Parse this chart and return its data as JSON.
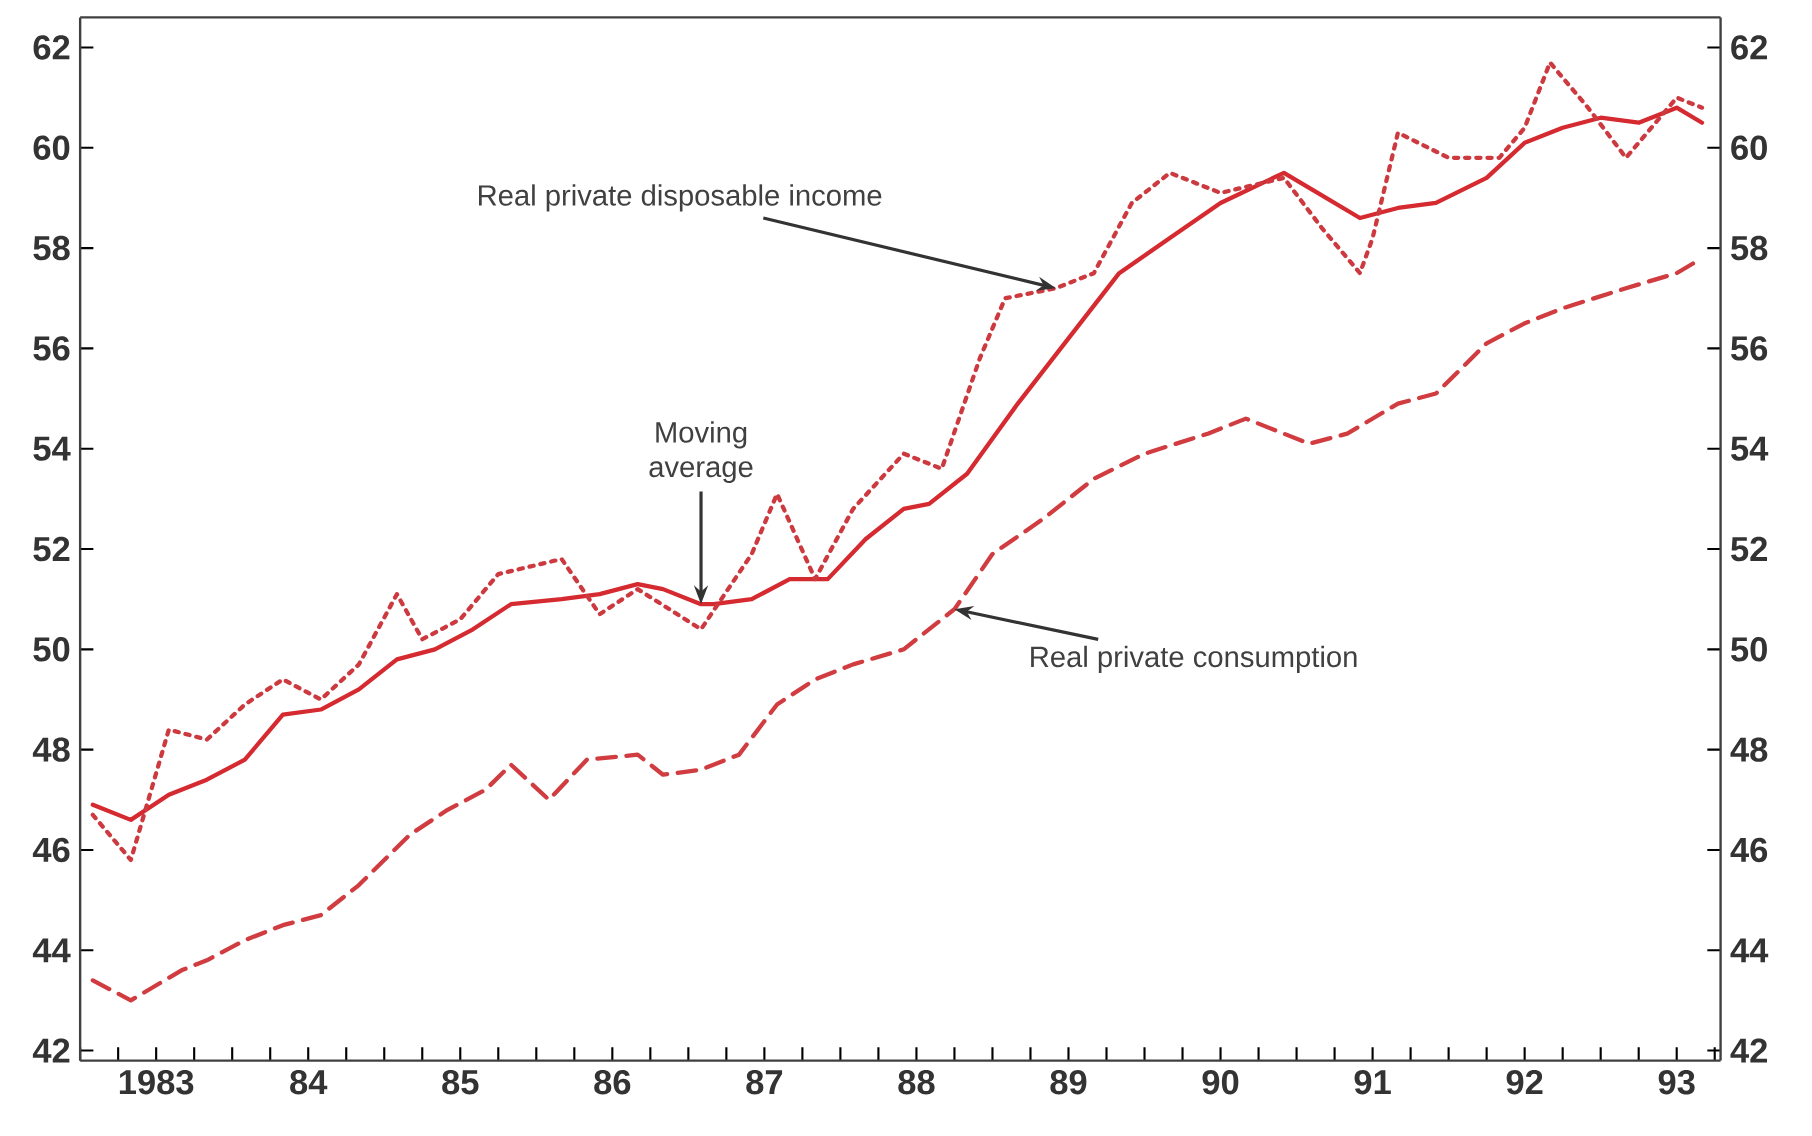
{
  "chart_data": {
    "type": "line",
    "xlim": [
      "1983-01-01",
      "1993-10-15"
    ],
    "ylim": [
      41.8,
      62.6
    ],
    "y2lim": [
      41.8,
      62.6
    ],
    "xticks": [
      {
        "value": "1983-01-01",
        "label": null
      },
      {
        "value": "1983-04-01",
        "label": null
      },
      {
        "value": "1983-07-01",
        "label": "1983"
      },
      {
        "value": "1983-10-01",
        "label": null
      },
      {
        "value": "1984-01-01",
        "label": null
      },
      {
        "value": "1984-04-01",
        "label": null
      },
      {
        "value": "1984-07-01",
        "label": "84"
      },
      {
        "value": "1984-10-01",
        "label": null
      },
      {
        "value": "1985-01-01",
        "label": null
      },
      {
        "value": "1985-04-01",
        "label": null
      },
      {
        "value": "1985-07-01",
        "label": "85"
      },
      {
        "value": "1985-10-01",
        "label": null
      },
      {
        "value": "1986-01-01",
        "label": null
      },
      {
        "value": "1986-04-01",
        "label": null
      },
      {
        "value": "1986-07-01",
        "label": "86"
      },
      {
        "value": "1986-10-01",
        "label": null
      },
      {
        "value": "1987-01-01",
        "label": null
      },
      {
        "value": "1987-04-01",
        "label": null
      },
      {
        "value": "1987-07-01",
        "label": "87"
      },
      {
        "value": "1987-10-01",
        "label": null
      },
      {
        "value": "1988-01-01",
        "label": null
      },
      {
        "value": "1988-04-01",
        "label": null
      },
      {
        "value": "1988-07-01",
        "label": "88"
      },
      {
        "value": "1988-10-01",
        "label": null
      },
      {
        "value": "1989-01-01",
        "label": null
      },
      {
        "value": "1989-04-01",
        "label": null
      },
      {
        "value": "1989-07-01",
        "label": "89"
      },
      {
        "value": "1989-10-01",
        "label": null
      },
      {
        "value": "1990-01-01",
        "label": null
      },
      {
        "value": "1990-04-01",
        "label": null
      },
      {
        "value": "1990-07-01",
        "label": "90"
      },
      {
        "value": "1990-10-01",
        "label": null
      },
      {
        "value": "1991-01-01",
        "label": null
      },
      {
        "value": "1991-04-01",
        "label": null
      },
      {
        "value": "1991-07-01",
        "label": "91"
      },
      {
        "value": "1991-10-01",
        "label": null
      },
      {
        "value": "1992-01-01",
        "label": null
      },
      {
        "value": "1992-04-01",
        "label": null
      },
      {
        "value": "1992-07-01",
        "label": "92"
      },
      {
        "value": "1992-10-01",
        "label": null
      },
      {
        "value": "1993-01-01",
        "label": null
      },
      {
        "value": "1993-04-01",
        "label": null
      },
      {
        "value": "1993-07-01",
        "label": "93"
      },
      {
        "value": "1993-10-01",
        "label": null
      }
    ],
    "yticks": [
      42,
      44,
      46,
      48,
      50,
      52,
      54,
      56,
      58,
      60,
      62
    ],
    "y2ticks": [
      42,
      44,
      46,
      48,
      50,
      52,
      54,
      56,
      58,
      60,
      62
    ],
    "grid": false,
    "series": [
      {
        "color": "#d42a30",
        "line_style": "solid",
        "x": [
          "1983-02",
          "1983-05",
          "1983-08",
          "1983-11",
          "1984-02",
          "1984-05",
          "1984-08",
          "1984-11",
          "1985-02",
          "1985-05",
          "1985-08",
          "1985-11",
          "1986-03",
          "1986-06",
          "1986-09",
          "1986-11",
          "1987-02",
          "1987-03",
          "1987-06",
          "1987-09",
          "1987-12",
          "1988-03",
          "1988-06",
          "1988-08",
          "1988-11",
          "1989-03",
          "1989-07",
          "1989-11",
          "1990-03",
          "1990-07",
          "1990-12",
          "1991-02",
          "1991-06",
          "1991-09",
          "1991-12",
          "1992-04",
          "1992-07",
          "1992-10",
          "1993-01",
          "1993-04",
          "1993-07",
          "1993-09"
        ],
        "values": [
          46.9,
          46.6,
          47.1,
          47.4,
          47.8,
          48.7,
          48.8,
          49.2,
          49.8,
          50.0,
          50.4,
          50.9,
          51.0,
          51.1,
          51.3,
          51.2,
          50.9,
          50.9,
          51.0,
          51.4,
          51.4,
          52.2,
          52.8,
          52.9,
          53.5,
          54.9,
          56.2,
          57.5,
          58.2,
          58.9,
          59.5,
          59.2,
          58.6,
          58.8,
          58.9,
          59.4,
          60.1,
          60.4,
          60.6,
          60.5,
          60.8,
          60.5
        ]
      },
      {
        "color": "#cc3a40",
        "line_style": "dotted",
        "x": [
          "1983-02",
          "1983-05",
          "1983-08",
          "1983-11",
          "1984-02",
          "1984-05",
          "1984-08",
          "1984-11",
          "1985-02",
          "1985-04",
          "1985-07",
          "1985-10",
          "1986-03",
          "1986-06",
          "1986-09",
          "1987-02",
          "1987-06",
          "1987-08",
          "1987-11",
          "1988-02",
          "1988-06",
          "1988-09",
          "1988-12",
          "1989-02",
          "1989-06",
          "1989-09",
          "1989-12",
          "1990-03",
          "1990-07",
          "1990-12",
          "1991-03",
          "1991-06",
          "1991-07",
          "1991-09",
          "1992-01",
          "1992-05",
          "1992-07",
          "1992-09",
          "1992-12",
          "1993-03",
          "1993-07",
          "1993-09"
        ],
        "values": [
          46.7,
          45.8,
          48.4,
          48.2,
          48.9,
          49.4,
          49.0,
          49.7,
          51.1,
          50.2,
          50.6,
          51.5,
          51.8,
          50.7,
          51.2,
          50.4,
          51.9,
          53.1,
          51.4,
          52.8,
          53.9,
          53.6,
          55.8,
          57.0,
          57.2,
          57.5,
          58.9,
          59.5,
          59.1,
          59.4,
          58.4,
          57.5,
          58.2,
          60.3,
          59.8,
          59.8,
          60.4,
          61.7,
          60.8,
          59.8,
          61.0,
          60.8
        ]
      },
      {
        "color": "#d03c40",
        "line_style": "dashed",
        "x": [
          "1983-02",
          "1983-05",
          "1983-09",
          "1983-11",
          "1984-02",
          "1984-05",
          "1984-08",
          "1984-11",
          "1985-03",
          "1985-06",
          "1985-09",
          "1985-11",
          "1986-02",
          "1986-05",
          "1986-09",
          "1986-11",
          "1987-02",
          "1987-05",
          "1987-08",
          "1987-11",
          "1988-02",
          "1988-06",
          "1988-10",
          "1989-01",
          "1989-05",
          "1989-09",
          "1990-01",
          "1990-06",
          "1990-09",
          "1991-02",
          "1991-05",
          "1991-09",
          "1991-12",
          "1992-04",
          "1992-07",
          "1992-10",
          "1993-03",
          "1993-07",
          "1993-09"
        ],
        "values": [
          43.4,
          43.0,
          43.6,
          43.8,
          44.2,
          44.5,
          44.7,
          45.3,
          46.3,
          46.8,
          47.2,
          47.7,
          47.0,
          47.8,
          47.9,
          47.5,
          47.6,
          47.9,
          48.9,
          49.4,
          49.7,
          50.0,
          50.8,
          51.9,
          52.6,
          53.4,
          53.9,
          54.3,
          54.6,
          54.1,
          54.3,
          54.9,
          55.1,
          56.1,
          56.5,
          56.8,
          57.2,
          57.5,
          57.8
        ]
      }
    ],
    "annotations": [
      {
        "text": "Real private disposable income",
        "x": "1989-06",
        "y": 57.2
      },
      {
        "text": "Moving average",
        "x": "1987-02",
        "y": 50.9
      },
      {
        "text": "Real private consumption",
        "x": "1988-10",
        "y": 50.8
      }
    ]
  }
}
